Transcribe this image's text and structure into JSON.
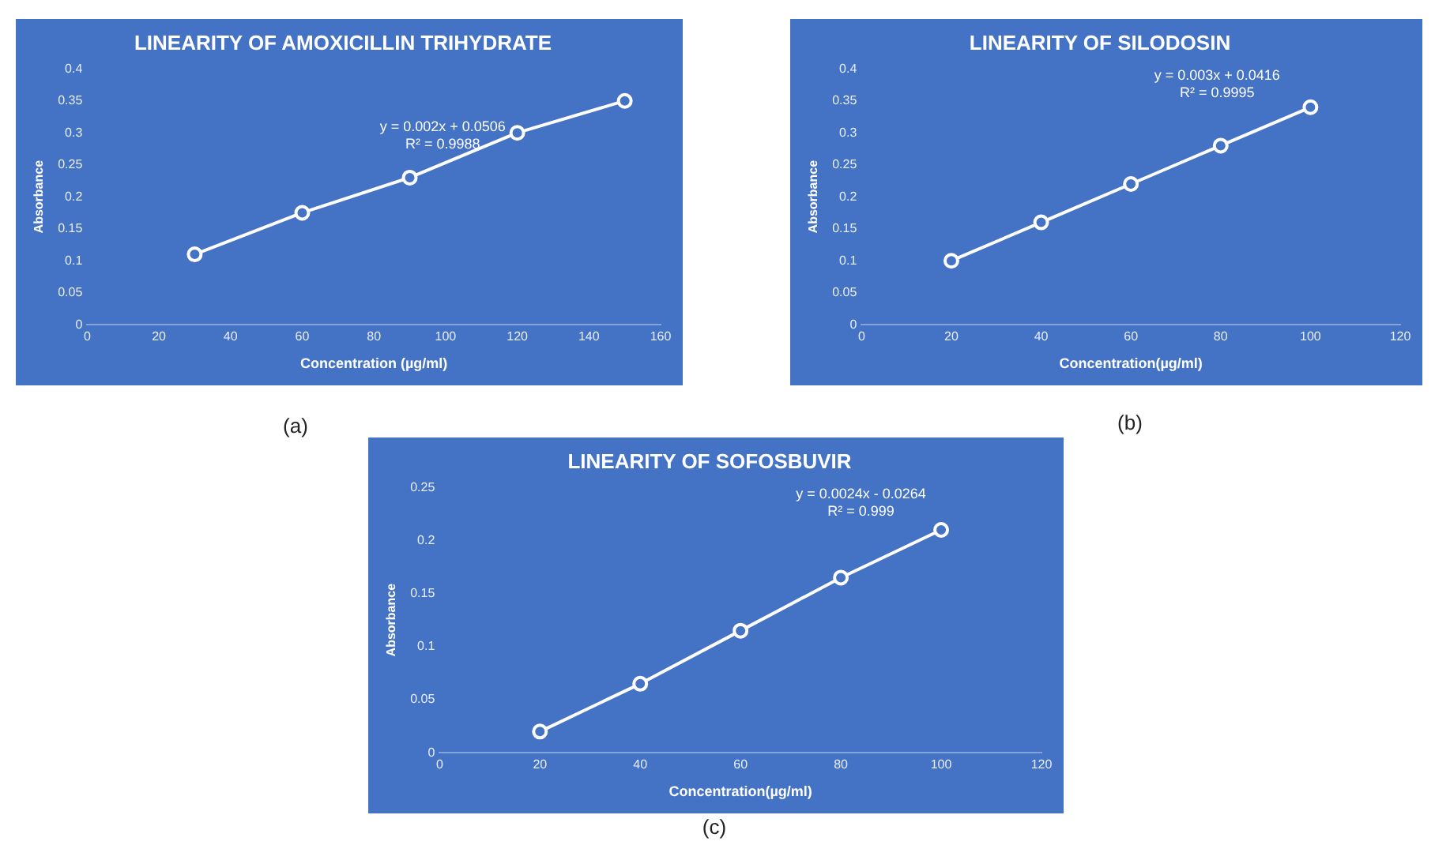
{
  "chart_data": [
    {
      "type": "line",
      "title": "LINEARITY OF AMOXICILLIN TRIHYDRATE",
      "xlabel": "Concentration (µg/ml)",
      "ylabel": "Absorbance",
      "x": [
        30,
        60,
        90,
        120,
        150
      ],
      "series": [
        {
          "color": "#ffffff",
          "values": [
            0.11,
            0.175,
            0.23,
            0.3,
            0.35
          ]
        }
      ],
      "xlim": [
        0,
        160
      ],
      "xticks": [
        0,
        20,
        40,
        60,
        80,
        100,
        120,
        140,
        160
      ],
      "ylim": [
        0,
        0.4
      ],
      "yticks": [
        0,
        0.05,
        0.1,
        0.15,
        0.2,
        0.25,
        0.3,
        0.35,
        0.4
      ],
      "grid": false,
      "legend": false,
      "marker": "circle",
      "line_style": "solid",
      "annotations": [
        "y = 0.002x + 0.0506",
        "R² = 0.9988",
        "(a)"
      ]
    },
    {
      "type": "line",
      "title": "LINEARITY OF SILODOSIN",
      "xlabel": "Concentration(µg/ml)",
      "ylabel": "Absorbance",
      "x": [
        20,
        40,
        60,
        80,
        100
      ],
      "series": [
        {
          "color": "#ffffff",
          "values": [
            0.1,
            0.16,
            0.22,
            0.28,
            0.34
          ]
        }
      ],
      "xlim": [
        0,
        120
      ],
      "xticks": [
        0,
        20,
        40,
        60,
        80,
        100,
        120
      ],
      "ylim": [
        0,
        0.4
      ],
      "yticks": [
        0,
        0.05,
        0.1,
        0.15,
        0.2,
        0.25,
        0.3,
        0.35,
        0.4
      ],
      "grid": false,
      "legend": false,
      "marker": "circle",
      "line_style": "solid",
      "annotations": [
        "y = 0.003x + 0.0416",
        "R² = 0.9995",
        "(b)"
      ]
    },
    {
      "type": "line",
      "title": "LINEARITY OF SOFOSBUVIR",
      "xlabel": "Concentration(µg/ml)",
      "ylabel": "Absorbance",
      "x": [
        20,
        40,
        60,
        80,
        100
      ],
      "series": [
        {
          "color": "#ffffff",
          "values": [
            0.02,
            0.065,
            0.115,
            0.165,
            0.21
          ]
        }
      ],
      "xlim": [
        0,
        120
      ],
      "xticks": [
        0,
        20,
        40,
        60,
        80,
        100,
        120
      ],
      "ylim": [
        0,
        0.25
      ],
      "yticks": [
        0,
        0.05,
        0.1,
        0.15,
        0.2,
        0.25
      ],
      "grid": false,
      "legend": false,
      "marker": "circle",
      "line_style": "solid",
      "annotations": [
        "y = 0.0024x - 0.0264",
        "R² = 0.999",
        "(c)"
      ]
    }
  ]
}
